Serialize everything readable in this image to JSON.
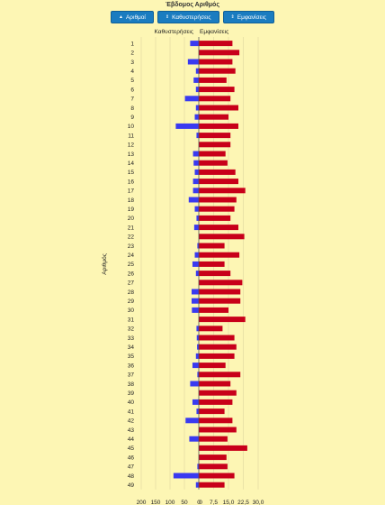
{
  "page": {
    "title": "Έβδομος Αριθμός"
  },
  "toolbar": {
    "buttons": [
      {
        "label": "Αριθμοί",
        "icon": "caret-up-icon",
        "glyph": "▲"
      },
      {
        "label": "Καθυστερήσεις",
        "icon": "sort-icon",
        "glyph": "⇕"
      },
      {
        "label": "Εμφανίσεις",
        "icon": "sort-icon",
        "glyph": "⇕"
      }
    ]
  },
  "chart_data": {
    "type": "bar",
    "orientation": "horizontal-back-to-back",
    "ylabel": "Αριθμός",
    "categories": [
      "1",
      "2",
      "3",
      "4",
      "5",
      "6",
      "7",
      "8",
      "9",
      "10",
      "11",
      "12",
      "13",
      "14",
      "15",
      "16",
      "17",
      "18",
      "19",
      "20",
      "21",
      "22",
      "23",
      "24",
      "25",
      "26",
      "27",
      "28",
      "29",
      "30",
      "31",
      "32",
      "33",
      "34",
      "35",
      "36",
      "37",
      "38",
      "39",
      "40",
      "41",
      "42",
      "43",
      "44",
      "45",
      "46",
      "47",
      "48",
      "49"
    ],
    "series": [
      {
        "name": "Καθυστερήσεις",
        "color": "#3a3af0",
        "side": "left",
        "xlim": [
          0,
          200
        ],
        "ticks": [
          "200",
          "150",
          "100",
          "50",
          "0"
        ],
        "tick_values": [
          200,
          150,
          100,
          50,
          0
        ],
        "values": [
          30,
          0,
          38,
          10,
          18,
          10,
          48,
          10,
          14,
          80,
          8,
          0,
          20,
          18,
          14,
          20,
          20,
          35,
          14,
          8,
          16,
          0,
          5,
          14,
          22,
          10,
          0,
          25,
          25,
          24,
          0,
          8,
          7,
          6,
          10,
          22,
          5,
          30,
          0,
          22,
          8,
          46,
          0,
          33,
          0,
          0,
          5,
          88,
          10
        ]
      },
      {
        "name": "Εμφανίσεις",
        "color": "#c8001a",
        "side": "right",
        "xlim": [
          0,
          30
        ],
        "ticks": [
          "0",
          "7,5",
          "15,0",
          "22,5",
          "30,0"
        ],
        "tick_values": [
          0,
          7.5,
          15,
          22.5,
          30
        ],
        "values": [
          17,
          20.5,
          17,
          18.5,
          14,
          18,
          16,
          20,
          15,
          20,
          16,
          16,
          13.5,
          14.5,
          18.5,
          20,
          23.5,
          19,
          18,
          16,
          20,
          23,
          13,
          20.5,
          13,
          16,
          22,
          21,
          21,
          15,
          23.5,
          12,
          18,
          19,
          18,
          13.5,
          21,
          16,
          19,
          17,
          13,
          17,
          19,
          14.5,
          24.5,
          14,
          14.5,
          18,
          13
        ]
      }
    ],
    "grid": true,
    "legend": "top"
  }
}
